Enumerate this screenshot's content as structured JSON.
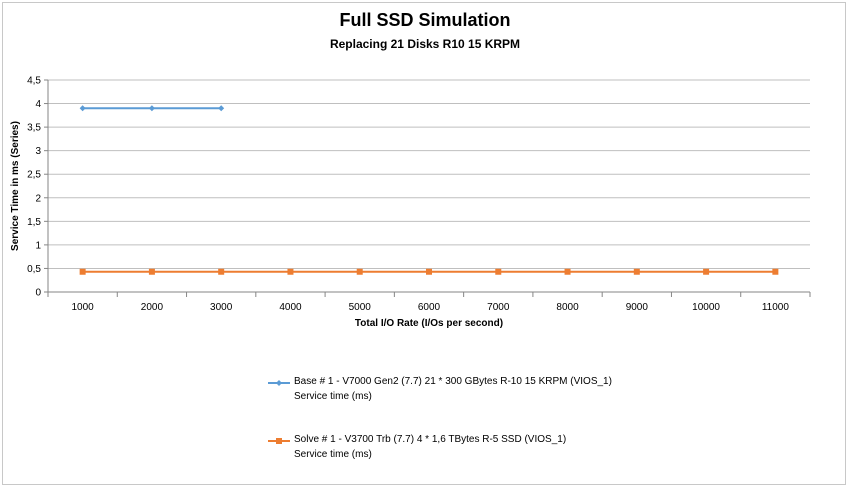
{
  "chart_data": {
    "type": "line",
    "title": "Full SSD Simulation",
    "subtitle": "Replacing 21 Disks R10 15 KRPM",
    "xlabel": "Total I/O Rate (I/Os per second)",
    "ylabel": "Service Time in ms (Series)",
    "categories": [
      "1000",
      "2000",
      "3000",
      "4000",
      "5000",
      "6000",
      "7000",
      "8000",
      "9000",
      "10000",
      "11000"
    ],
    "y_ticks": [
      "0",
      "0,5",
      "1",
      "1,5",
      "2",
      "2,5",
      "3",
      "3,5",
      "4",
      "4,5"
    ],
    "ylim": [
      0,
      4.5
    ],
    "grid": true,
    "legend_position": "bottom",
    "series": [
      {
        "name": "Base # 1 - V7000 Gen2 (7.7) 21 * 300 GBytes R-10 15 KRPM (VIOS_1)",
        "sub": "Service time (ms)",
        "color": "#5b9bd5",
        "marker": "diamond",
        "values": [
          3.9,
          3.9,
          3.9,
          null,
          null,
          null,
          null,
          null,
          null,
          null,
          null
        ]
      },
      {
        "name": "Solve # 1 - V3700 Trb (7.7) 4 * 1,6 TBytes R-5 SSD (VIOS_1)",
        "sub": "Service time (ms)",
        "color": "#ed7d31",
        "marker": "square",
        "values": [
          0.43,
          0.43,
          0.43,
          0.43,
          0.43,
          0.43,
          0.43,
          0.43,
          0.43,
          0.43,
          0.43
        ]
      }
    ]
  }
}
